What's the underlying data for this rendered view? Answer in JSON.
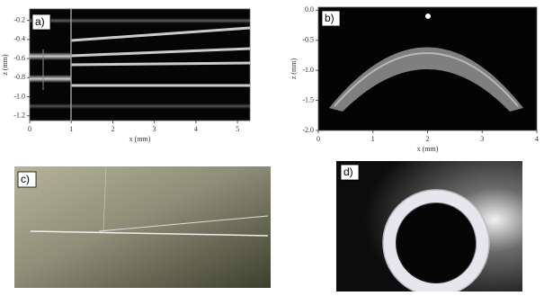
{
  "panels": [
    {
      "label": "a)",
      "x_label": "x (mm)",
      "y_label": "z (mm)",
      "xlim": [
        0,
        5.3
      ],
      "ylim": [
        -1.25,
        -0.08
      ],
      "xticks": [
        0,
        1,
        2,
        3,
        4,
        5
      ],
      "yticks": [
        -0.2,
        -0.4,
        -0.6,
        -0.8,
        {
          "value": -1,
          "label": "-1.0"
        },
        -1.2
      ]
    },
    {
      "label": "b)",
      "x_label": "x (mm)",
      "y_label": "z (mm)",
      "xlim": [
        0,
        4
      ],
      "ylim": [
        -2,
        0.05
      ],
      "xticks": [
        0,
        1,
        2,
        3,
        4
      ],
      "yticks": [
        {
          "value": 0,
          "label": "0.0"
        },
        -0.5,
        {
          "value": -1,
          "label": "-1.0"
        },
        -1.5,
        {
          "value": -2,
          "label": "-2.0"
        }
      ]
    },
    {
      "label": "c)"
    },
    {
      "label": "d)"
    }
  ]
}
